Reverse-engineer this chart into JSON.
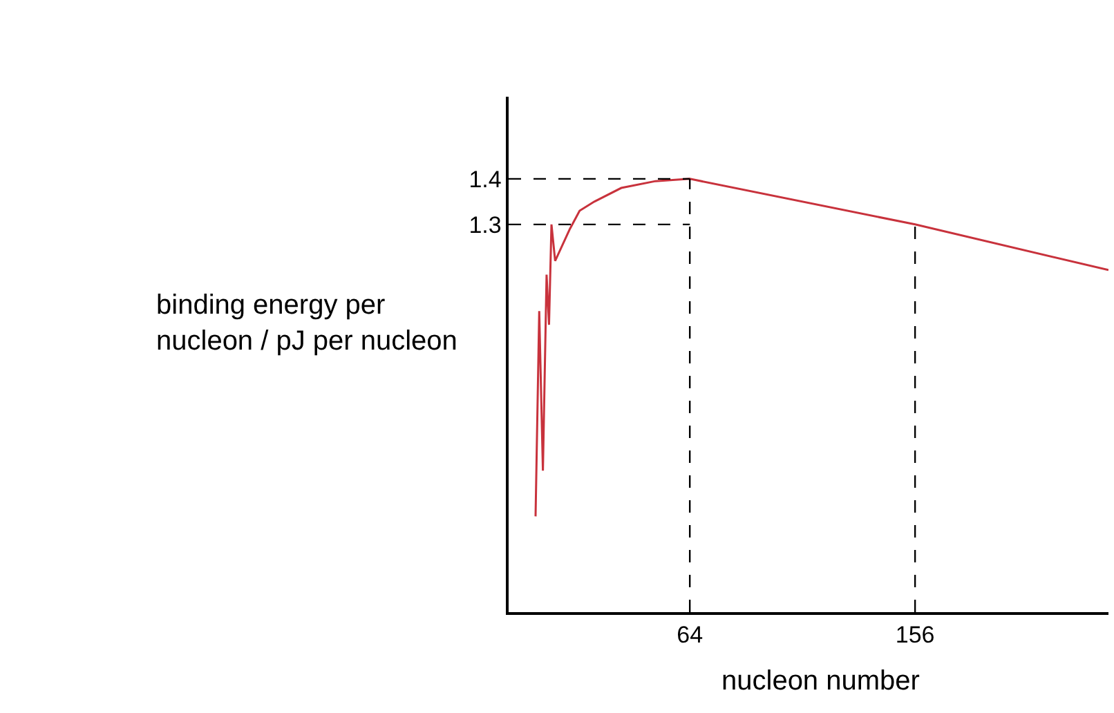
{
  "chart_data": {
    "type": "line",
    "xlabel": "nucleon number",
    "ylabel": "binding energy per\nnucleon / pJ per nucleon",
    "x": [
      1,
      2.5,
      4,
      5.5,
      6.5,
      7.5,
      9,
      15,
      19,
      25,
      36,
      50,
      64,
      156,
      235
    ],
    "series": [
      {
        "color": "#c8323c",
        "values": [
          0.66,
          1.11,
          0.76,
          1.19,
          1.08,
          1.3,
          1.22,
          1.29,
          1.33,
          1.35,
          1.38,
          1.395,
          1.4,
          1.3,
          1.2
        ]
      }
    ],
    "xlim": [
      -10,
      235
    ],
    "ylim": [
      0.45,
      1.58
    ],
    "xticks": [
      64,
      156
    ],
    "yticks": [
      1.3,
      1.4
    ],
    "ref_lines": [
      {
        "axis": "x",
        "value": 64,
        "line_style": "dashed",
        "color": "#000000"
      },
      {
        "axis": "x",
        "value": 156,
        "line_style": "dashed",
        "color": "#000000"
      },
      {
        "axis": "y",
        "value": 1.4,
        "line_style": "dashed",
        "color": "#000000"
      },
      {
        "axis": "y",
        "value": 1.3,
        "line_style": "dashed",
        "color": "#000000"
      }
    ],
    "marker": "none",
    "line_style": "solid"
  }
}
